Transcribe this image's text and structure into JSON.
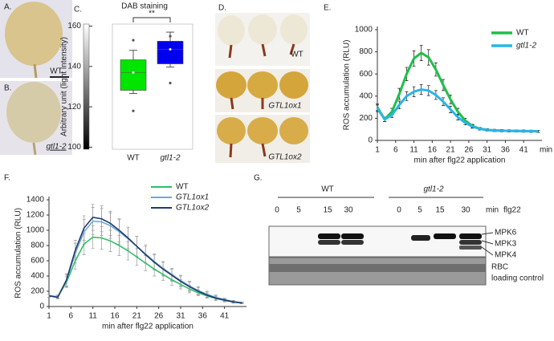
{
  "panels": {
    "A": {
      "label": "A.",
      "caption": "WT"
    },
    "B": {
      "label": "B.",
      "caption": "gtl1-2"
    },
    "D": {
      "label": "D.",
      "rows": [
        "WT",
        "GTL1ox1",
        "GTL1ox2"
      ]
    },
    "G": {
      "label": "G.",
      "groups": [
        "WT",
        "gtl1-2"
      ],
      "times": [
        0,
        5,
        15,
        30,
        0,
        5,
        15,
        30
      ],
      "unit": "min",
      "treatment": "flg22",
      "bands": [
        "MPK6",
        "MPK3",
        "MPK4"
      ],
      "loading": [
        "RBC",
        "loading control"
      ]
    }
  },
  "chart_data": [
    {
      "label": "C.",
      "type": "box",
      "title": "DAB staining",
      "ylabel": "Arbitrary unit (light intensity)",
      "categories": [
        "WT",
        "gtl1-2"
      ],
      "significance": "**",
      "boxes": [
        {
          "color": "#00e600",
          "min": 126.6,
          "q1": 128.2,
          "median": 137,
          "q3": 143.3,
          "max": 148,
          "mean": 137,
          "outliers": [
            118,
            153
          ]
        },
        {
          "color": "#0000ee",
          "min": 139.7,
          "q1": 141.3,
          "median": 148.5,
          "q3": 152.5,
          "max": 157,
          "mean": 148.5,
          "outliers": [
            131.8,
            155
          ]
        }
      ],
      "ylim": [
        99,
        161
      ],
      "yticks": [
        100,
        120,
        140,
        160
      ]
    },
    {
      "label": "E.",
      "type": "line",
      "xlabel": "min after flg22 application",
      "ylabel": "ROS accumulation (RLU)",
      "xunit": "min",
      "x": [
        1,
        3,
        5,
        7,
        9,
        11,
        13,
        15,
        17,
        19,
        21,
        23,
        25,
        27,
        29,
        31,
        33,
        35,
        37,
        39,
        41,
        43,
        45
      ],
      "series": [
        {
          "name": "WT",
          "color": "#1fbf4a",
          "values": [
            300,
            190,
            260,
            420,
            600,
            740,
            790,
            750,
            640,
            500,
            370,
            260,
            180,
            130,
            105,
            95,
            90,
            88,
            86,
            85,
            84,
            83,
            82
          ],
          "errors": [
            30,
            20,
            30,
            50,
            60,
            70,
            70,
            70,
            60,
            50,
            40,
            30,
            20,
            15,
            12,
            10,
            10,
            10,
            10,
            10,
            10,
            10,
            10
          ]
        },
        {
          "name": "gtl1-2",
          "color": "#29b5e8",
          "values": [
            290,
            190,
            230,
            320,
            400,
            440,
            460,
            450,
            410,
            350,
            280,
            210,
            160,
            125,
            105,
            95,
            90,
            88,
            86,
            85,
            84,
            83,
            82
          ],
          "errors": [
            30,
            20,
            25,
            35,
            40,
            45,
            45,
            45,
            40,
            35,
            30,
            25,
            20,
            15,
            12,
            10,
            10,
            10,
            10,
            10,
            10,
            10,
            10
          ]
        }
      ],
      "error_color": "#111",
      "xlim": [
        1,
        46
      ],
      "xticks": [
        1,
        6,
        11,
        16,
        21,
        26,
        31,
        36,
        41
      ],
      "ylim": [
        0,
        1000
      ],
      "yticks": [
        0,
        200,
        400,
        600,
        800,
        1000
      ]
    },
    {
      "label": "F.",
      "type": "line",
      "xlabel": "min after flg22 application",
      "ylabel": "ROS accumulation (RLU)",
      "x": [
        1,
        3,
        5,
        7,
        9,
        11,
        13,
        15,
        17,
        19,
        21,
        23,
        25,
        27,
        29,
        31,
        33,
        35,
        37,
        39,
        41,
        43,
        45
      ],
      "series": [
        {
          "name": "WT",
          "color": "#2ebf6a",
          "values": [
            140,
            130,
            320,
            600,
            820,
            910,
            900,
            860,
            800,
            730,
            650,
            570,
            490,
            420,
            350,
            290,
            230,
            180,
            140,
            105,
            80,
            60,
            45
          ],
          "errors": [
            20,
            20,
            70,
            110,
            140,
            150,
            150,
            140,
            130,
            120,
            110,
            100,
            90,
            80,
            70,
            60,
            50,
            40,
            30,
            25,
            20,
            15,
            10
          ]
        },
        {
          "name": "GTL1ox1",
          "color": "#6fa8dc",
          "values": [
            140,
            130,
            340,
            700,
            980,
            1120,
            1110,
            1060,
            980,
            890,
            790,
            690,
            590,
            500,
            420,
            340,
            270,
            210,
            160,
            120,
            90,
            65,
            50
          ],
          "errors": [
            20,
            20,
            80,
            130,
            160,
            180,
            180,
            170,
            160,
            150,
            130,
            120,
            100,
            90,
            80,
            70,
            60,
            50,
            40,
            30,
            20,
            15,
            10
          ]
        },
        {
          "name": "GTL1ox2",
          "color": "#1f3a6e",
          "values": [
            140,
            120,
            350,
            740,
            1030,
            1170,
            1150,
            1090,
            1000,
            900,
            790,
            680,
            580,
            490,
            410,
            330,
            260,
            200,
            150,
            110,
            85,
            60,
            45
          ],
          "errors": [
            20,
            20,
            80,
            130,
            160,
            170,
            170,
            160,
            150,
            140,
            130,
            110,
            100,
            90,
            80,
            70,
            60,
            50,
            40,
            30,
            20,
            15,
            10
          ]
        }
      ],
      "error_color": "#999",
      "xlim": [
        1,
        46
      ],
      "xticks": [
        1,
        6,
        11,
        16,
        21,
        26,
        31,
        36,
        41
      ],
      "ylim": [
        0,
        1400
      ],
      "yticks": [
        0,
        200,
        400,
        600,
        800,
        1000,
        1200,
        1400
      ]
    }
  ]
}
